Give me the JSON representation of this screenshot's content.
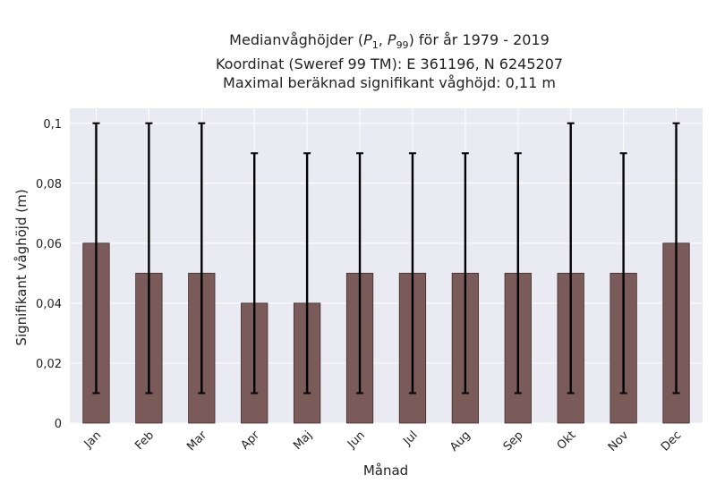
{
  "chart_data": {
    "type": "bar",
    "title_lines": [
      "Medianvåghöjder (P1, P99) för år 1979 - 2019",
      "Koordinat (Sweref 99 TM): E 361196, N 6245207",
      "Maximal beräknad signifikant våghöjd: 0,11 m"
    ],
    "xlabel": "Månad",
    "ylabel": "Signifikant våghöjd (m)",
    "categories": [
      "Jan",
      "Feb",
      "Mar",
      "Apr",
      "Maj",
      "Jun",
      "Jul",
      "Aug",
      "Sep",
      "Okt",
      "Nov",
      "Dec"
    ],
    "series": [
      {
        "values": [
          0.06,
          0.05,
          0.05,
          0.04,
          0.04,
          0.05,
          0.05,
          0.05,
          0.05,
          0.05,
          0.05,
          0.06
        ],
        "p1": [
          0.01,
          0.01,
          0.01,
          0.01,
          0.01,
          0.01,
          0.01,
          0.01,
          0.01,
          0.01,
          0.01,
          0.01
        ],
        "p99": [
          0.1,
          0.1,
          0.1,
          0.09,
          0.09,
          0.09,
          0.09,
          0.09,
          0.09,
          0.1,
          0.09,
          0.1
        ]
      }
    ],
    "ylim": [
      0,
      0.105
    ],
    "yticks": [
      0,
      0.02,
      0.04,
      0.06,
      0.08,
      0.1
    ],
    "ytick_labels": [
      "0",
      "0,02",
      "0,04",
      "0,06",
      "0,08",
      "0,1"
    ],
    "grid": true,
    "colors": {
      "bar": "#7b5a5a",
      "bar_edge": "#3e2b2b",
      "errorbar": "#000000",
      "plot_background": "#eaeaf2",
      "gridline": "#ffffff"
    }
  }
}
